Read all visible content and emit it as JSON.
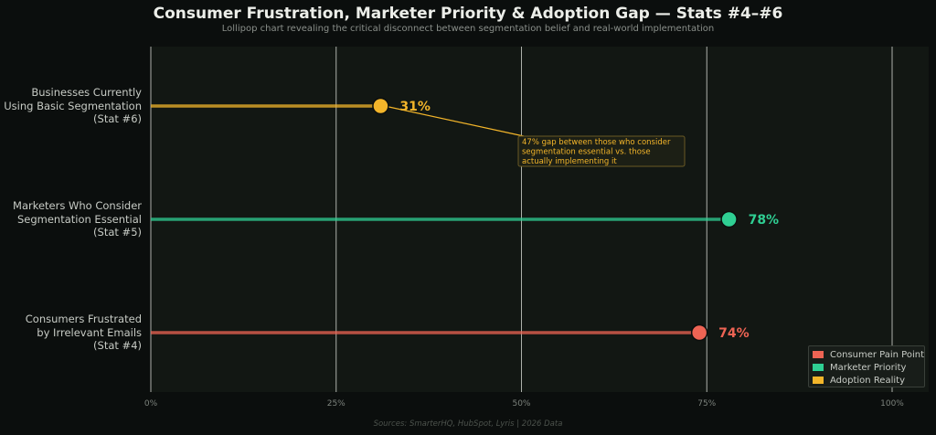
{
  "chart_data": {
    "type": "lollipop",
    "title": "Consumer Frustration, Marketer Priority & Adoption Gap — Stats #4–#6",
    "subtitle": "Lollipop chart revealing the critical disconnect between segmentation belief and real-world implementation",
    "orientation": "horizontal",
    "xlim": [
      0,
      100
    ],
    "xticks": [
      "0%",
      "25%",
      "50%",
      "75%",
      "100%"
    ],
    "xtick_values": [
      0,
      25,
      50,
      75,
      100
    ],
    "grid": true,
    "categories": [
      {
        "label": "Businesses Currently\nUsing Basic Segmentation\n(Stat #6)",
        "value": 31,
        "value_label": "31%",
        "series": "Adoption Reality",
        "color": "#f3b52a"
      },
      {
        "label": "Marketers Who Consider\nSegmentation Essential\n(Stat #5)",
        "value": 78,
        "value_label": "78%",
        "series": "Marketer Priority",
        "color": "#2fcf93"
      },
      {
        "label": "Consumers Frustrated\nby Irrelevant Emails\n(Stat #4)",
        "value": 74,
        "value_label": "74%",
        "series": "Consumer Pain Point",
        "color": "#ee6454"
      }
    ],
    "annotation": {
      "text": "47% gap between those who consider\nsegmentation essential vs. those\nactually implementing it",
      "color": "#f3b52a"
    },
    "legend": {
      "position": "bottom-right",
      "entries": [
        {
          "name": "Consumer Pain Point",
          "color": "#ee6454"
        },
        {
          "name": "Marketer Priority",
          "color": "#2fcf93"
        },
        {
          "name": "Adoption Reality",
          "color": "#f3b52a"
        }
      ]
    },
    "source": "Sources: SmarterHQ, HubSpot, Lyris  |  2026 Data"
  }
}
